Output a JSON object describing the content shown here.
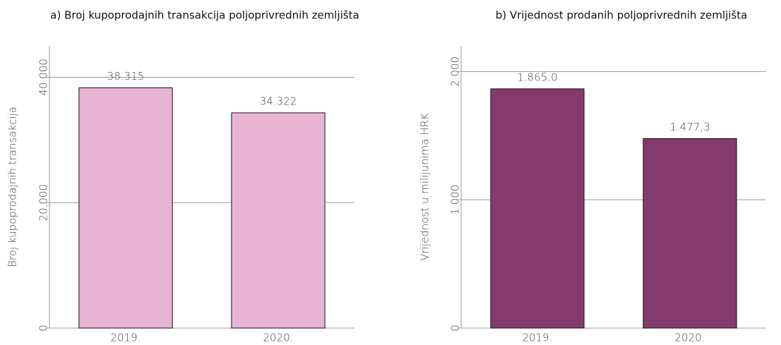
{
  "chart_data": [
    {
      "type": "bar",
      "title": "a) Broj kupoprodajnih transakcija poljoprivrednih zemljišta",
      "y_label": "Broj kupoprodajnih transakcija",
      "categories": [
        "2019.",
        "2020."
      ],
      "values": [
        38315,
        34322
      ],
      "value_labels": [
        "38.315",
        "34.322"
      ],
      "color": "#e8b4d4",
      "ylim": [
        0,
        45000
      ],
      "yticks": [
        0,
        {
          "value": 20000,
          "label": "20.000"
        },
        {
          "value": 40000,
          "label": "40.000"
        }
      ],
      "grid": true
    },
    {
      "type": "bar",
      "title": "b) Vrijednost prodanih poljoprivrednih zemljišta",
      "y_label": "Vrijednost u milijunima HRK",
      "categories": [
        "2019.",
        "2020."
      ],
      "values": [
        1865.0,
        1477.3
      ],
      "value_labels": [
        "1.865,0",
        "1.477,3"
      ],
      "color": "#843b6b",
      "ylim": [
        0,
        2200
      ],
      "yticks": [
        0,
        {
          "value": 1000,
          "label": "1.000"
        },
        {
          "value": 2000,
          "label": "2.000"
        }
      ],
      "grid": true
    }
  ]
}
